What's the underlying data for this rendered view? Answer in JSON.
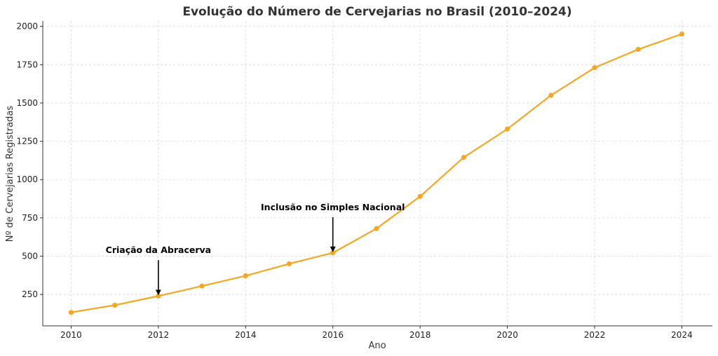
{
  "chart_data": {
    "type": "line",
    "title": "Evolução do Número de Cervejarias no Brasil (2010–2024)",
    "xlabel": "Ano",
    "ylabel": "Nº de Cervejarias Registradas",
    "xlim": [
      2009.35,
      2024.7
    ],
    "ylim": [
      45,
      2035
    ],
    "xticks": [
      2010,
      2012,
      2014,
      2016,
      2018,
      2020,
      2022,
      2024
    ],
    "yticks": [
      250,
      500,
      750,
      1000,
      1250,
      1500,
      1750,
      2000
    ],
    "grid": true,
    "series": [
      {
        "color": "#f5a623",
        "x": [
          2010,
          2011,
          2012,
          2013,
          2014,
          2015,
          2016,
          2017,
          2018,
          2019,
          2020,
          2021,
          2022,
          2023,
          2024
        ],
        "y": [
          133,
          180,
          240,
          305,
          372,
          450,
          522,
          680,
          890,
          1145,
          1330,
          1550,
          1730,
          1850,
          1950
        ]
      }
    ],
    "annotations": [
      {
        "text": "Criação da Abracerva",
        "x": 2012,
        "y": 240,
        "text_y": 520
      },
      {
        "text": "Inclusão no Simples Nacional",
        "x": 2016,
        "y": 522,
        "text_y": 800
      }
    ]
  }
}
